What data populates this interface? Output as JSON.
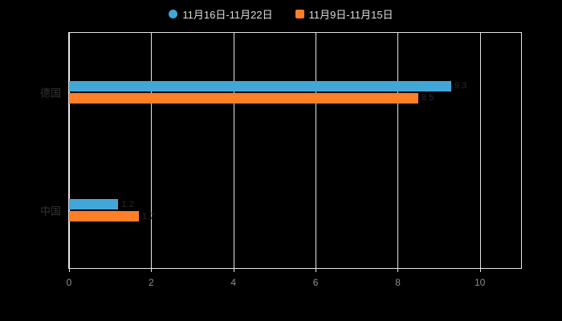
{
  "background_color": "#000000",
  "legend": {
    "items": [
      {
        "label": "11月16日-11月22日",
        "color": "#41a7d8",
        "marker": "circle"
      },
      {
        "label": "11月9日-11月15日",
        "color": "#ff7f27",
        "marker": "square"
      }
    ]
  },
  "chart_data": {
    "type": "bar",
    "orientation": "horizontal",
    "title": "",
    "xlabel": "",
    "ylabel": "",
    "categories": [
      "德国",
      "中国"
    ],
    "series": [
      {
        "name": "11月16日-11月22日",
        "color": "#41a7d8",
        "values": [
          9.3,
          1.2
        ]
      },
      {
        "name": "11月9日-11月15日",
        "color": "#ff7f27",
        "values": [
          8.5,
          1.7
        ]
      }
    ],
    "xlim": [
      0,
      11
    ],
    "xticks": [
      0,
      2,
      4,
      6,
      8,
      10
    ],
    "grid": true,
    "legend_position": "top",
    "grid_color": "#e6e6e6",
    "tick_label_color": "#8c8c8c",
    "category_label_color": "#333333"
  }
}
